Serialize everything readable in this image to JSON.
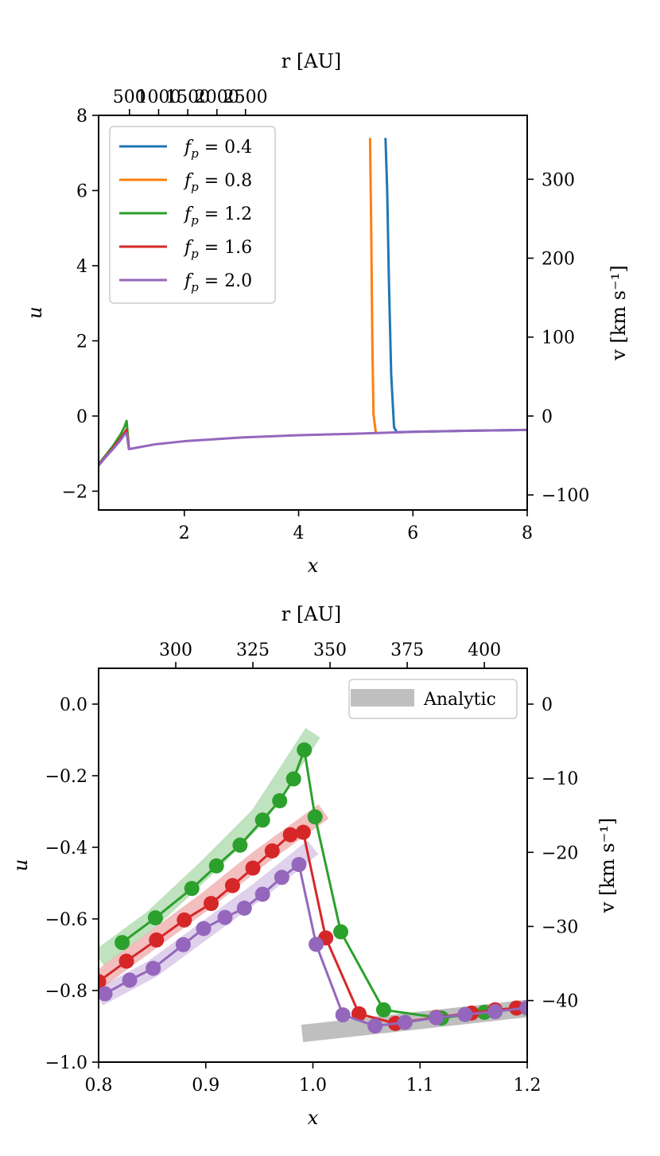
{
  "chart_data": [
    {
      "type": "line",
      "panel": "top",
      "xlabel": "x",
      "ylabel": "u",
      "top_xlabel": "r [AU]",
      "right_ylabel": "v [km s⁻¹]",
      "xlim": [
        0.5,
        8
      ],
      "ylim": [
        -2.5,
        8
      ],
      "xticks": [
        2,
        4,
        6,
        8
      ],
      "yticks": [
        -2,
        0,
        2,
        4,
        6,
        8
      ],
      "xtick_labels": [
        "2",
        "4",
        "6",
        "8"
      ],
      "ytick_labels": [
        "−2",
        "0",
        "2",
        "4",
        "6",
        "8"
      ],
      "top_xticks_x": [
        1.04,
        1.55,
        2.06,
        2.57,
        3.07
      ],
      "top_xtick_labels": [
        "500",
        "1000",
        "1500",
        "2000",
        "2500"
      ],
      "right_yticks_u": [
        -2.1,
        0,
        2.1,
        4.2,
        6.3
      ],
      "right_ytick_labels": [
        "−100",
        "0",
        "100",
        "200",
        "300"
      ],
      "legend_position": "top-left",
      "series": [
        {
          "name": "f_p = 0.4",
          "label_main": "f",
          "label_sub": "p",
          "label_rest": " = 0.4",
          "color": "#1f77b4",
          "x": [
            5.52,
            5.55,
            5.58,
            5.62,
            5.67,
            5.72,
            6.0,
            7.0,
            8.0
          ],
          "y": [
            7.4,
            6.0,
            3.6,
            1.1,
            -0.3,
            -0.43,
            -0.42,
            -0.39,
            -0.37
          ]
        },
        {
          "name": "f_p = 0.8",
          "label_main": "f",
          "label_sub": "p",
          "label_rest": " = 0.8",
          "color": "#ff7f0e",
          "x": [
            5.25,
            5.27,
            5.29,
            5.31,
            5.35
          ],
          "y": [
            7.4,
            5.0,
            2.0,
            0.05,
            -0.43
          ]
        },
        {
          "name": "f_p = 1.2",
          "label_main": "f",
          "label_sub": "p",
          "label_rest": " = 1.2",
          "color": "#2ca02c",
          "x": [
            0.5,
            0.62,
            0.75,
            0.88,
            0.95,
            0.99,
            1.03
          ],
          "y": [
            -1.28,
            -1.05,
            -0.8,
            -0.5,
            -0.3,
            -0.13,
            -0.86
          ]
        },
        {
          "name": "f_p = 1.6",
          "label_main": "f",
          "label_sub": "p",
          "label_rest": " = 1.6",
          "color": "#d62728",
          "x": [
            0.5,
            0.62,
            0.75,
            0.88,
            0.95,
            0.99,
            1.03
          ],
          "y": [
            -1.3,
            -1.08,
            -0.85,
            -0.6,
            -0.45,
            -0.36,
            -0.86
          ]
        },
        {
          "name": "f_p = 2.0",
          "label_main": "f",
          "label_sub": "p",
          "label_rest": " = 2.0",
          "color": "#9467bd",
          "x": [
            0.5,
            0.62,
            0.75,
            0.88,
            0.95,
            0.99,
            1.03,
            1.5,
            2.0,
            3.0,
            4.0,
            5.0,
            6.0,
            7.0,
            8.0
          ],
          "y": [
            -1.32,
            -1.1,
            -0.88,
            -0.65,
            -0.5,
            -0.45,
            -0.88,
            -0.75,
            -0.67,
            -0.57,
            -0.51,
            -0.47,
            -0.42,
            -0.39,
            -0.37
          ]
        }
      ]
    },
    {
      "type": "line",
      "panel": "bottom",
      "xlabel": "x",
      "ylabel": "u",
      "top_xlabel": "r [AU]",
      "right_ylabel": "v [km s⁻¹]",
      "xlim": [
        0.8,
        1.2
      ],
      "ylim": [
        -1.0,
        0.1
      ],
      "xticks": [
        0.8,
        0.9,
        1.0,
        1.1,
        1.2
      ],
      "yticks": [
        -1.0,
        -0.8,
        -0.6,
        -0.4,
        -0.2,
        0.0
      ],
      "xtick_labels": [
        "0.8",
        "0.9",
        "1.0",
        "1.1",
        "1.2"
      ],
      "ytick_labels": [
        "−1.0",
        "−0.8",
        "−0.6",
        "−0.4",
        "−0.2",
        "0.0"
      ],
      "top_xticks_x": [
        0.872,
        0.944,
        1.016,
        1.088,
        1.16
      ],
      "top_xtick_labels": [
        "300",
        "325",
        "350",
        "375",
        "400"
      ],
      "right_yticks_u": [
        0.0,
        -0.207,
        -0.414,
        -0.621,
        -0.828
      ],
      "right_ytick_labels": [
        "0",
        "−10",
        "−20",
        "−30",
        "−40"
      ],
      "legend_position": "top-right",
      "legend": [
        {
          "name": "Analytic",
          "color": "#bfbfbf"
        }
      ],
      "analytic": [
        {
          "color": "#2ca02c",
          "x": [
            0.8,
            0.85,
            0.9,
            0.95,
            1.0
          ],
          "y": [
            -0.71,
            -0.6,
            -0.46,
            -0.31,
            -0.08
          ]
        },
        {
          "color": "#d62728",
          "x": [
            0.8,
            0.85,
            0.9,
            0.95,
            1.01
          ],
          "y": [
            -0.77,
            -0.66,
            -0.55,
            -0.43,
            -0.3
          ]
        },
        {
          "color": "#9467bd",
          "x": [
            0.8,
            0.85,
            0.9,
            0.95,
            1.0
          ],
          "y": [
            -0.82,
            -0.74,
            -0.63,
            -0.52,
            -0.4
          ]
        },
        {
          "color": "#bfbfbf",
          "x": [
            0.99,
            1.2
          ],
          "y": [
            -0.92,
            -0.85
          ]
        }
      ],
      "series": [
        {
          "name": "f_p = 1.2",
          "color": "#2ca02c",
          "x": [
            0.822,
            0.853,
            0.887,
            0.91,
            0.932,
            0.953,
            0.969,
            0.982,
            0.992,
            1.002,
            1.026,
            1.066,
            1.12,
            1.16,
            1.2
          ],
          "y": [
            -0.666,
            -0.597,
            -0.515,
            -0.452,
            -0.394,
            -0.324,
            -0.27,
            -0.209,
            -0.128,
            -0.315,
            -0.636,
            -0.854,
            -0.877,
            -0.861,
            -0.849
          ]
        },
        {
          "name": "f_p = 1.6",
          "color": "#d62728",
          "x": [
            0.8,
            0.826,
            0.854,
            0.88,
            0.905,
            0.925,
            0.944,
            0.962,
            0.979,
            0.991,
            1.012,
            1.043,
            1.077,
            1.115,
            1.148,
            1.17,
            1.19
          ],
          "y": [
            -0.775,
            -0.718,
            -0.659,
            -0.603,
            -0.557,
            -0.507,
            -0.458,
            -0.41,
            -0.365,
            -0.358,
            -0.653,
            -0.865,
            -0.892,
            -0.875,
            -0.863,
            -0.854,
            -0.849
          ]
        },
        {
          "name": "f_p = 2.0",
          "color": "#9467bd",
          "x": [
            0.806,
            0.829,
            0.851,
            0.879,
            0.898,
            0.918,
            0.936,
            0.953,
            0.971,
            0.987,
            1.003,
            1.028,
            1.058,
            1.086,
            1.115,
            1.142,
            1.17,
            1.2
          ],
          "y": [
            -0.809,
            -0.771,
            -0.738,
            -0.672,
            -0.627,
            -0.596,
            -0.57,
            -0.531,
            -0.484,
            -0.448,
            -0.671,
            -0.868,
            -0.899,
            -0.889,
            -0.876,
            -0.867,
            -0.859,
            -0.848
          ]
        }
      ]
    }
  ]
}
